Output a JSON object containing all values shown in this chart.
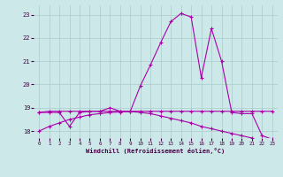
{
  "background_color": "#cce8e8",
  "grid_color": "#aacccc",
  "line_color": "#aa00aa",
  "xlabel": "Windchill (Refroidissement éolien,°C)",
  "xlim": [
    -0.5,
    23.5
  ],
  "ylim": [
    17.7,
    23.4
  ],
  "yticks": [
    18,
    19,
    20,
    21,
    22,
    23
  ],
  "xticks": [
    0,
    1,
    2,
    3,
    4,
    5,
    6,
    7,
    8,
    9,
    10,
    11,
    12,
    13,
    14,
    15,
    16,
    17,
    18,
    19,
    20,
    21,
    22,
    23
  ],
  "curve1_x": [
    0,
    1,
    2,
    3,
    4,
    5,
    6,
    7,
    8,
    9,
    10,
    11,
    12,
    13,
    14,
    15,
    16,
    17,
    18,
    19,
    20,
    21,
    22,
    23
  ],
  "curve1_y": [
    18.8,
    18.8,
    18.8,
    18.2,
    18.8,
    18.85,
    18.85,
    19.0,
    18.85,
    18.85,
    19.95,
    20.85,
    21.8,
    22.7,
    23.05,
    22.9,
    20.3,
    22.4,
    21.0,
    18.8,
    18.75,
    18.75,
    17.8,
    17.65
  ],
  "curve2_x": [
    0,
    1,
    2,
    3,
    4,
    5,
    6,
    7,
    8,
    9,
    10,
    11,
    12,
    13,
    14,
    15,
    16,
    17,
    18,
    19,
    20,
    21,
    22,
    23
  ],
  "curve2_y": [
    18.8,
    18.85,
    18.85,
    18.85,
    18.85,
    18.85,
    18.85,
    18.85,
    18.85,
    18.85,
    18.85,
    18.85,
    18.85,
    18.85,
    18.85,
    18.85,
    18.85,
    18.85,
    18.85,
    18.85,
    18.85,
    18.85,
    18.85,
    18.85
  ],
  "curve3_x": [
    0,
    1,
    2,
    3,
    4,
    5,
    6,
    7,
    8,
    9,
    10,
    11,
    12,
    13,
    14,
    15,
    16,
    17,
    18,
    19,
    20,
    21,
    22,
    23
  ],
  "curve3_y": [
    18.0,
    18.2,
    18.35,
    18.5,
    18.6,
    18.7,
    18.75,
    18.8,
    18.82,
    18.84,
    18.8,
    18.75,
    18.65,
    18.55,
    18.45,
    18.35,
    18.2,
    18.1,
    18.0,
    17.9,
    17.8,
    17.7,
    17.6,
    17.55
  ]
}
